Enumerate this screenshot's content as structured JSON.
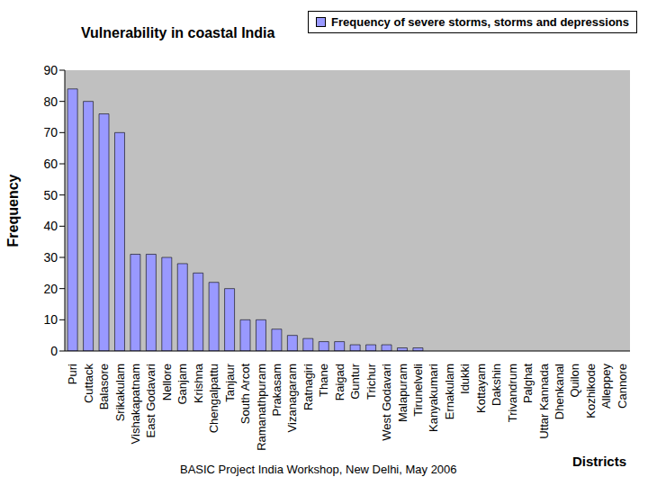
{
  "chart_data": {
    "type": "bar",
    "title": "Vulnerability in coastal India",
    "x_label": "Districts",
    "y_label": "Frequency",
    "categories": [
      "Puri",
      "Cuttack",
      "Balasore",
      "Srikakulam",
      "Vishakapatnam",
      "East Godavari",
      "Nellore",
      "Ganjam",
      "Krishna",
      "Chengalpattu",
      "Tanjaur",
      "South Arcot",
      "Ramanathpuram",
      "Prakasam",
      "Vizanagaram",
      "Ratnagiri",
      "Thane",
      "Raigad",
      "Guntur",
      "Trichur",
      "West Godavari",
      "Malapuram",
      "Tirunelveli",
      "Kanyakumari",
      "Ernakulam",
      "Idukki",
      "Kottayam",
      "Dakshin",
      "Trivandrum",
      "Palghat",
      "Uttar Kannada",
      "Dhenkanal",
      "Quilon",
      "Kozhikode",
      "Alleppey",
      "Cannore"
    ],
    "series": [
      {
        "name": "Frequency of severe storms, storms and depressions",
        "color": "#9999ff",
        "values": [
          84,
          80,
          76,
          70,
          31,
          31,
          30,
          28,
          25,
          22,
          20,
          10,
          10,
          7,
          5,
          4,
          3,
          3,
          2,
          2,
          2,
          1,
          1,
          0,
          0,
          0,
          0,
          0,
          0,
          0,
          0,
          0,
          0,
          0,
          0,
          0
        ]
      }
    ],
    "ylim": [
      0,
      90
    ],
    "yticks": [
      0,
      10,
      20,
      30,
      40,
      50,
      60,
      70,
      80,
      90
    ],
    "grid": false,
    "legend": "top right",
    "annotations": [
      "BASIC Project India Workshop, New Delhi, May 2006"
    ]
  }
}
